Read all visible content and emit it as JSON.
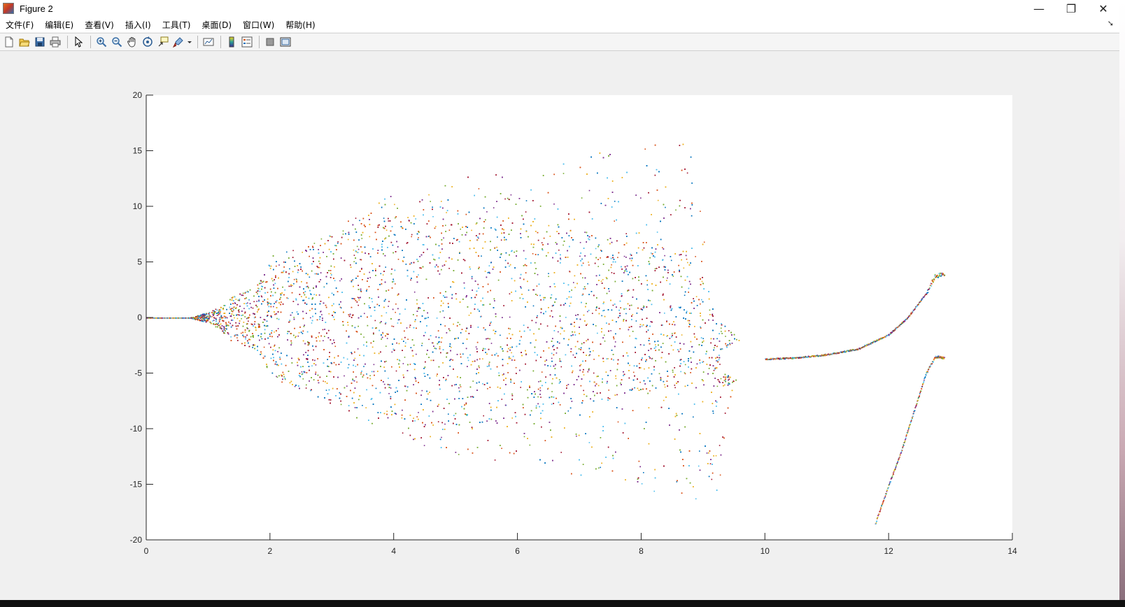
{
  "window": {
    "title": "Figure 2",
    "controls": {
      "minimize": "—",
      "restore": "❐",
      "close": "✕"
    }
  },
  "menu": {
    "items": [
      "文件(F)",
      "编辑(E)",
      "查看(V)",
      "插入(I)",
      "工具(T)",
      "桌面(D)",
      "窗口(W)",
      "帮助(H)"
    ],
    "overflow_icon": "dock-arrow-icon"
  },
  "toolbar": {
    "buttons": [
      "new-figure-icon",
      "open-file-icon",
      "save-icon",
      "print-icon",
      "select-pointer-icon",
      "zoom-in-icon",
      "zoom-out-icon",
      "pan-hand-icon",
      "rotate-3d-icon",
      "data-cursor-icon",
      "brush-icon",
      "link-plot-icon",
      "colorbar-icon",
      "legend-icon",
      "hide-plot-tools-icon",
      "show-plot-tools-icon"
    ]
  },
  "chart_data": {
    "type": "scatter",
    "title": "",
    "xlabel": "",
    "ylabel": "",
    "xlim": [
      0,
      14
    ],
    "ylim": [
      -20,
      20
    ],
    "xticks": [
      "0",
      "2",
      "4",
      "6",
      "8",
      "10",
      "12",
      "14"
    ],
    "yticks": [
      "20",
      "15",
      "10",
      "5",
      "0",
      "-5",
      "-10",
      "-15",
      "-20"
    ],
    "grid": false,
    "marker_colors": [
      "#0072bd",
      "#d95319",
      "#edb120",
      "#7e2f8e",
      "#77ac30",
      "#4dbeee",
      "#a2142f"
    ],
    "envelope": {
      "x": [
        0,
        0.7,
        1.0,
        1.2,
        1.3,
        1.5,
        1.8,
        2.0,
        3.0,
        3.9,
        4.5,
        5.0,
        5.5,
        6.0,
        7.0,
        8.0,
        8.85,
        9.2,
        9.5,
        9.75,
        10.0
      ],
      "upper": [
        0,
        0,
        0.5,
        1.0,
        1.8,
        2.2,
        3.0,
        5.0,
        8.0,
        11.0,
        11.0,
        12.5,
        13.0,
        13.0,
        14.5,
        16.0,
        16.0,
        0.5,
        -1.5,
        -2.7,
        -3.6
      ],
      "lower": [
        0,
        0,
        -0.5,
        -1.0,
        -1.9,
        -2.3,
        -3.0,
        -5.0,
        -8.0,
        -10.5,
        -11.5,
        -12.5,
        -13.0,
        -13.0,
        -15.0,
        -15.5,
        -16.5,
        -17.0,
        -5.0,
        -4.8,
        -4.0
      ]
    },
    "dense_band": {
      "x": [
        2.0,
        4.5,
        6.0,
        8.85,
        9.2,
        9.7,
        10.0
      ],
      "upper": [
        5.5,
        10.5,
        9.0,
        6.0,
        0.0,
        -2.8,
        -3.6
      ],
      "lower": [
        -5.5,
        -10.0,
        -9.0,
        -6.0,
        -6.5,
        -5.2,
        -4.0
      ]
    },
    "gap_x": 6.0,
    "bubble": {
      "x": 9.65,
      "y": -3.8,
      "rx": 0.38,
      "ry": 1.6
    },
    "branch": {
      "x": [
        10.0,
        10.5,
        11.0,
        11.5,
        12.0,
        12.3,
        12.6,
        12.75,
        12.9
      ],
      "y": [
        -3.7,
        -3.6,
        -3.3,
        -2.8,
        -1.5,
        0.0,
        2.2,
        3.8,
        3.9
      ]
    },
    "lower_branch": {
      "x": [
        11.78,
        12.0,
        12.2,
        12.4,
        12.6,
        12.75,
        12.9
      ],
      "y": [
        -18.5,
        -15.0,
        -12.0,
        -8.5,
        -5.0,
        -3.5,
        -3.6
      ]
    }
  }
}
